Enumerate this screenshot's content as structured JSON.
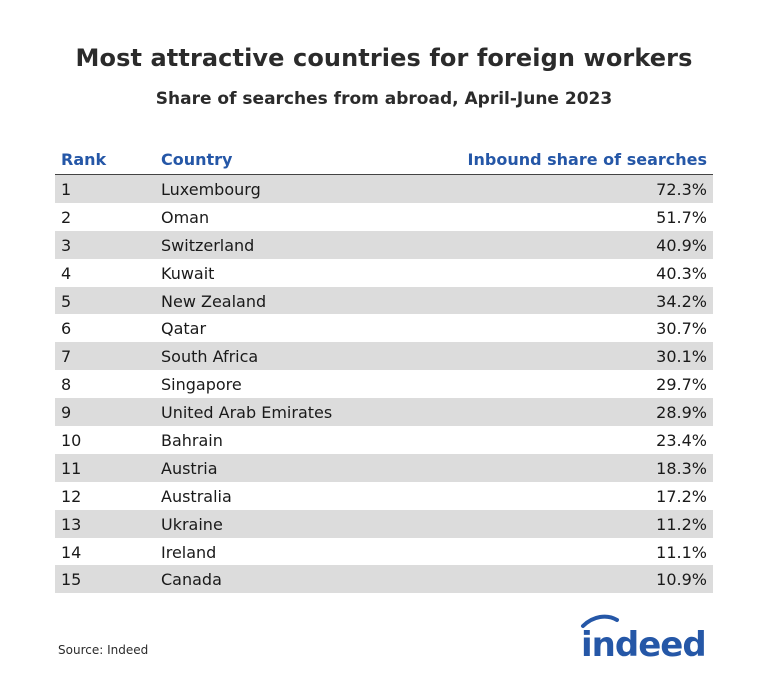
{
  "title": "Most attractive countries for foreign workers",
  "subtitle": "Share of searches from abroad, April-June 2023",
  "columns": {
    "rank": "Rank",
    "country": "Country",
    "share": "Inbound share of searches"
  },
  "rows": [
    {
      "rank": "1",
      "country": "Luxembourg",
      "share": "72.3%"
    },
    {
      "rank": "2",
      "country": "Oman",
      "share": "51.7%"
    },
    {
      "rank": "3",
      "country": "Switzerland",
      "share": "40.9%"
    },
    {
      "rank": "4",
      "country": "Kuwait",
      "share": "40.3%"
    },
    {
      "rank": "5",
      "country": "New Zealand",
      "share": "34.2%"
    },
    {
      "rank": "6",
      "country": "Qatar",
      "share": "30.7%"
    },
    {
      "rank": "7",
      "country": "South Africa",
      "share": "30.1%"
    },
    {
      "rank": "8",
      "country": "Singapore",
      "share": "29.7%"
    },
    {
      "rank": "9",
      "country": "United Arab Emirates",
      "share": "28.9%"
    },
    {
      "rank": "10",
      "country": "Bahrain",
      "share": "23.4%"
    },
    {
      "rank": "11",
      "country": "Austria",
      "share": "18.3%"
    },
    {
      "rank": "12",
      "country": "Australia",
      "share": "17.2%"
    },
    {
      "rank": "13",
      "country": "Ukraine",
      "share": "11.2%"
    },
    {
      "rank": "14",
      "country": "Ireland",
      "share": "11.1%"
    },
    {
      "rank": "15",
      "country": "Canada",
      "share": "10.9%"
    }
  ],
  "source": "Source: Indeed",
  "logo": {
    "text": "indeed",
    "icon": "indeed-logo",
    "color": "#2557a7"
  },
  "colors": {
    "header_text": "#2557a7",
    "row_shade": "#dcdcdc"
  }
}
